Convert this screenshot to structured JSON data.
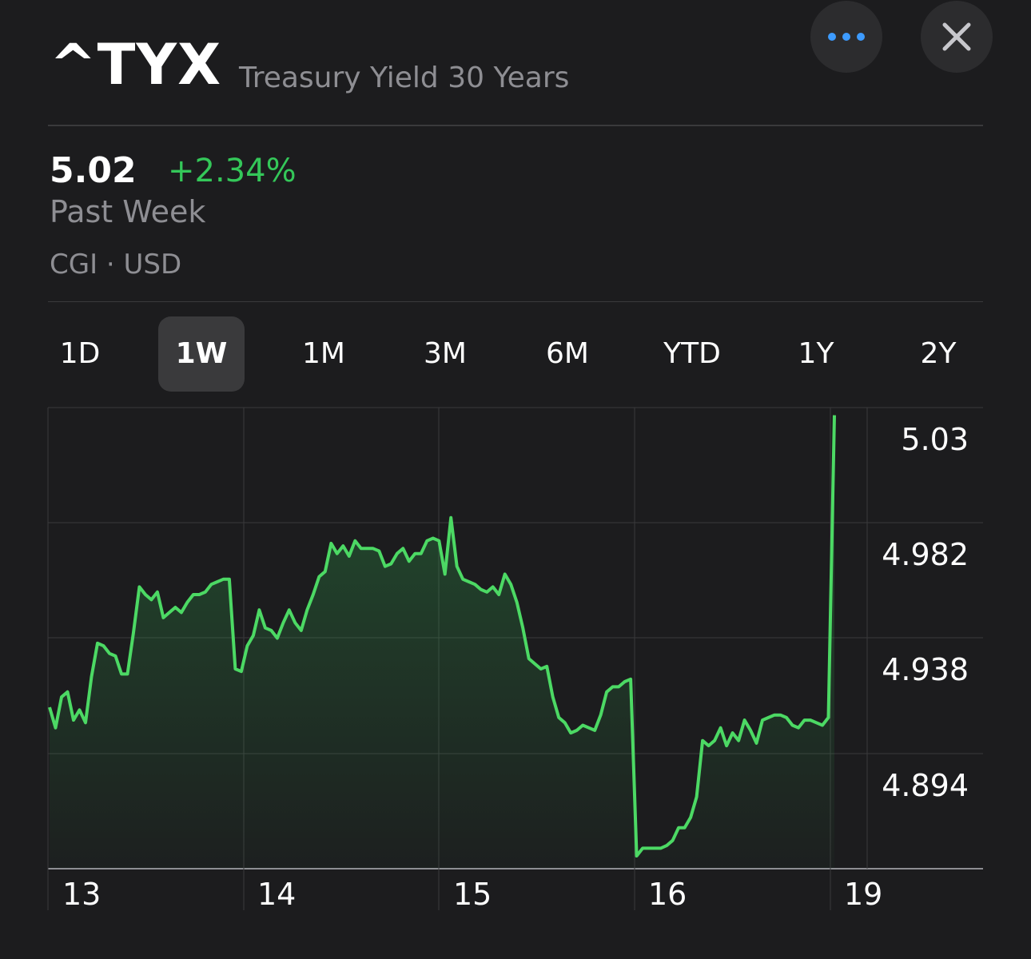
{
  "header": {
    "symbol": "^TYX",
    "name": "Treasury Yield 30 Years",
    "more_icon": "more-dots-icon",
    "close_icon": "close-icon",
    "accent_color": "#3d9bff"
  },
  "quote": {
    "price": "5.02",
    "change": "+2.34%",
    "change_color": "#34c759",
    "period": "Past Week",
    "exchange": "CGI · USD"
  },
  "ranges": {
    "items": [
      "1D",
      "1W",
      "1M",
      "3M",
      "6M",
      "YTD",
      "1Y",
      "2Y"
    ],
    "selected": "1W"
  },
  "chart_data": {
    "type": "line",
    "x_tick_labels": [
      "13",
      "14",
      "15",
      "16",
      "19"
    ],
    "y_tick_labels": [
      "5.03",
      "4.982",
      "4.938",
      "4.894"
    ],
    "ylim": [
      4.85,
      5.03
    ],
    "grid": true,
    "line_color": "#4cd964",
    "series": [
      {
        "values": [
          4.913,
          4.905,
          4.917,
          4.919,
          4.908,
          4.912,
          4.907,
          4.925,
          4.938,
          4.937,
          4.934,
          4.933,
          4.926,
          4.926,
          4.942,
          4.96,
          4.957,
          4.955,
          4.958,
          4.948,
          4.95,
          4.952,
          4.95,
          4.954,
          4.957,
          4.957,
          4.958,
          4.961,
          4.962,
          4.963,
          4.963,
          4.928,
          4.927,
          4.937,
          4.941,
          4.951,
          4.944,
          4.943,
          4.94,
          4.946,
          4.951,
          4.946,
          4.943,
          4.951,
          4.957,
          4.964,
          4.966,
          4.977,
          4.973,
          4.976,
          4.972,
          4.978,
          4.975,
          4.975,
          4.975,
          4.974,
          4.968,
          4.969,
          4.973,
          4.975,
          4.97,
          4.973,
          4.973,
          4.978,
          4.979,
          4.978,
          4.965,
          4.987,
          4.968,
          4.963,
          4.962,
          4.961,
          4.959,
          4.958,
          4.96,
          4.957,
          4.965,
          4.961,
          4.954,
          4.944,
          4.932,
          4.93,
          4.928,
          4.929,
          4.917,
          4.909,
          4.907,
          4.903,
          4.904,
          4.906,
          4.905,
          4.904,
          4.91,
          4.919,
          4.921,
          4.921,
          4.923,
          4.924,
          4.855,
          4.858,
          4.858,
          4.858,
          4.858,
          4.859,
          4.861,
          4.866,
          4.866,
          4.87,
          4.878,
          4.9,
          4.898,
          4.9,
          4.905,
          4.898,
          4.903,
          4.9,
          4.908,
          4.904,
          4.899,
          4.908,
          4.909,
          4.91,
          4.91,
          4.909,
          4.906,
          4.905,
          4.908,
          4.908,
          4.907,
          4.906,
          4.909,
          5.027
        ]
      }
    ]
  }
}
